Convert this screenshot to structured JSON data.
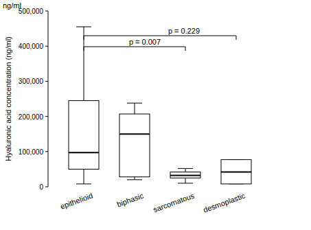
{
  "chart_data": {
    "type": "box",
    "y_unit": "ng/ml",
    "y_label": "Hyaluronic acid concentration (ng/ml)",
    "categories": [
      "epithelioid",
      "biphasic",
      "sarcomatous",
      "desmoplastic"
    ],
    "boxes": [
      {
        "min": 8000,
        "q1": 50000,
        "median": 97000,
        "q3": 245000,
        "max": 455000
      },
      {
        "min": 20000,
        "q1": 28000,
        "median": 150000,
        "q3": 207000,
        "max": 238000
      },
      {
        "min": 10000,
        "q1": 25000,
        "median": 32000,
        "q3": 42000,
        "max": 52000
      },
      {
        "min": 8000,
        "q1": 8000,
        "median": 42000,
        "q3": 77000,
        "max": 77000
      }
    ],
    "ylim": [
      0,
      500000
    ],
    "yticks": [
      0,
      {
        "value": 100000,
        "label": "100,000"
      },
      {
        "value": 200000,
        "label": "200,000"
      },
      {
        "value": 300000,
        "label": "300,000"
      },
      {
        "value": 400000,
        "label": "400,000"
      },
      {
        "value": 500000,
        "label": "500,000"
      }
    ],
    "annotations": [
      {
        "text": "p = 0.229",
        "between": [
          "epithelioid",
          "desmoplastic"
        ]
      },
      {
        "text": "p = 0.007",
        "between": [
          "epithelioid",
          "sarcomatous"
        ]
      }
    ],
    "grid": false,
    "color": "#ffffff"
  }
}
